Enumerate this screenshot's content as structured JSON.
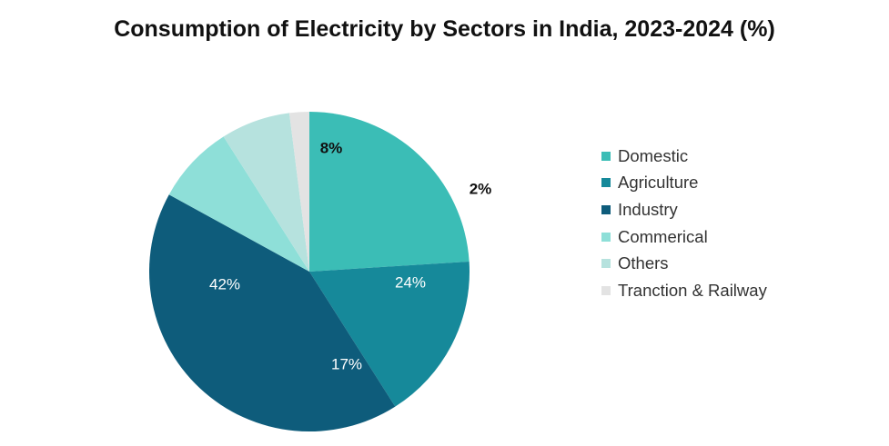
{
  "chart_data": {
    "type": "pie",
    "title": "Consumption of Electricity by Sectors in India, 2023-2024 (%)",
    "start_angle_deg": 0,
    "direction": "clockwise",
    "slices": [
      {
        "name": "Domestic",
        "value": 24,
        "label": "24%",
        "color": "#3bbdb6",
        "label_color": "#ffffff"
      },
      {
        "name": "Agriculture",
        "value": 17,
        "label": "17%",
        "color": "#16899a",
        "label_color": "#ffffff"
      },
      {
        "name": "Industry",
        "value": 42,
        "label": "42%",
        "color": "#0e5c7b",
        "label_color": "#ffffff"
      },
      {
        "name": "Commerical",
        "value": 8,
        "label": "8%",
        "color": "#8edfd8",
        "label_color": "#111111"
      },
      {
        "name": "Others",
        "value": 7,
        "label": "",
        "color": "#b6e2de",
        "label_color": "#111111"
      },
      {
        "name": "Tranction & Railway",
        "value": 2,
        "label": "2%",
        "color": "#e3e3e3",
        "label_color": "#111111"
      }
    ],
    "legend_position": "right"
  }
}
